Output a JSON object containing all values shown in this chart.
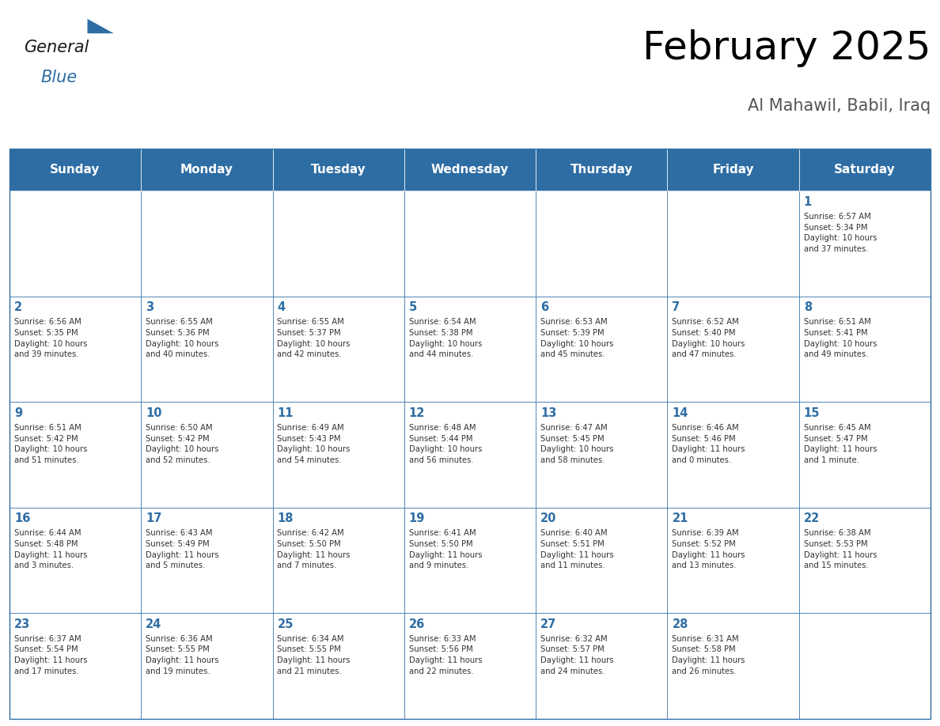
{
  "title": "February 2025",
  "subtitle": "Al Mahawil, Babil, Iraq",
  "header_bg": "#2E6DA4",
  "header_text_color": "#FFFFFF",
  "cell_bg": "#FFFFFF",
  "day_text_color": "#2E6DA4",
  "info_text_color": "#333333",
  "border_color": "#2E6DA4",
  "days_of_week": [
    "Sunday",
    "Monday",
    "Tuesday",
    "Wednesday",
    "Thursday",
    "Friday",
    "Saturday"
  ],
  "weeks": [
    [
      {
        "day": null,
        "info": ""
      },
      {
        "day": null,
        "info": ""
      },
      {
        "day": null,
        "info": ""
      },
      {
        "day": null,
        "info": ""
      },
      {
        "day": null,
        "info": ""
      },
      {
        "day": null,
        "info": ""
      },
      {
        "day": 1,
        "info": "Sunrise: 6:57 AM\nSunset: 5:34 PM\nDaylight: 10 hours\nand 37 minutes."
      }
    ],
    [
      {
        "day": 2,
        "info": "Sunrise: 6:56 AM\nSunset: 5:35 PM\nDaylight: 10 hours\nand 39 minutes."
      },
      {
        "day": 3,
        "info": "Sunrise: 6:55 AM\nSunset: 5:36 PM\nDaylight: 10 hours\nand 40 minutes."
      },
      {
        "day": 4,
        "info": "Sunrise: 6:55 AM\nSunset: 5:37 PM\nDaylight: 10 hours\nand 42 minutes."
      },
      {
        "day": 5,
        "info": "Sunrise: 6:54 AM\nSunset: 5:38 PM\nDaylight: 10 hours\nand 44 minutes."
      },
      {
        "day": 6,
        "info": "Sunrise: 6:53 AM\nSunset: 5:39 PM\nDaylight: 10 hours\nand 45 minutes."
      },
      {
        "day": 7,
        "info": "Sunrise: 6:52 AM\nSunset: 5:40 PM\nDaylight: 10 hours\nand 47 minutes."
      },
      {
        "day": 8,
        "info": "Sunrise: 6:51 AM\nSunset: 5:41 PM\nDaylight: 10 hours\nand 49 minutes."
      }
    ],
    [
      {
        "day": 9,
        "info": "Sunrise: 6:51 AM\nSunset: 5:42 PM\nDaylight: 10 hours\nand 51 minutes."
      },
      {
        "day": 10,
        "info": "Sunrise: 6:50 AM\nSunset: 5:42 PM\nDaylight: 10 hours\nand 52 minutes."
      },
      {
        "day": 11,
        "info": "Sunrise: 6:49 AM\nSunset: 5:43 PM\nDaylight: 10 hours\nand 54 minutes."
      },
      {
        "day": 12,
        "info": "Sunrise: 6:48 AM\nSunset: 5:44 PM\nDaylight: 10 hours\nand 56 minutes."
      },
      {
        "day": 13,
        "info": "Sunrise: 6:47 AM\nSunset: 5:45 PM\nDaylight: 10 hours\nand 58 minutes."
      },
      {
        "day": 14,
        "info": "Sunrise: 6:46 AM\nSunset: 5:46 PM\nDaylight: 11 hours\nand 0 minutes."
      },
      {
        "day": 15,
        "info": "Sunrise: 6:45 AM\nSunset: 5:47 PM\nDaylight: 11 hours\nand 1 minute."
      }
    ],
    [
      {
        "day": 16,
        "info": "Sunrise: 6:44 AM\nSunset: 5:48 PM\nDaylight: 11 hours\nand 3 minutes."
      },
      {
        "day": 17,
        "info": "Sunrise: 6:43 AM\nSunset: 5:49 PM\nDaylight: 11 hours\nand 5 minutes."
      },
      {
        "day": 18,
        "info": "Sunrise: 6:42 AM\nSunset: 5:50 PM\nDaylight: 11 hours\nand 7 minutes."
      },
      {
        "day": 19,
        "info": "Sunrise: 6:41 AM\nSunset: 5:50 PM\nDaylight: 11 hours\nand 9 minutes."
      },
      {
        "day": 20,
        "info": "Sunrise: 6:40 AM\nSunset: 5:51 PM\nDaylight: 11 hours\nand 11 minutes."
      },
      {
        "day": 21,
        "info": "Sunrise: 6:39 AM\nSunset: 5:52 PM\nDaylight: 11 hours\nand 13 minutes."
      },
      {
        "day": 22,
        "info": "Sunrise: 6:38 AM\nSunset: 5:53 PM\nDaylight: 11 hours\nand 15 minutes."
      }
    ],
    [
      {
        "day": 23,
        "info": "Sunrise: 6:37 AM\nSunset: 5:54 PM\nDaylight: 11 hours\nand 17 minutes."
      },
      {
        "day": 24,
        "info": "Sunrise: 6:36 AM\nSunset: 5:55 PM\nDaylight: 11 hours\nand 19 minutes."
      },
      {
        "day": 25,
        "info": "Sunrise: 6:34 AM\nSunset: 5:55 PM\nDaylight: 11 hours\nand 21 minutes."
      },
      {
        "day": 26,
        "info": "Sunrise: 6:33 AM\nSunset: 5:56 PM\nDaylight: 11 hours\nand 22 minutes."
      },
      {
        "day": 27,
        "info": "Sunrise: 6:32 AM\nSunset: 5:57 PM\nDaylight: 11 hours\nand 24 minutes."
      },
      {
        "day": 28,
        "info": "Sunrise: 6:31 AM\nSunset: 5:58 PM\nDaylight: 11 hours\nand 26 minutes."
      },
      {
        "day": null,
        "info": ""
      }
    ]
  ],
  "logo_text_general": "General",
  "logo_text_blue": "Blue",
  "logo_color_general": "#1a1a1a",
  "logo_color_blue": "#2E6DA4",
  "logo_triangle_color": "#2E6DA4"
}
